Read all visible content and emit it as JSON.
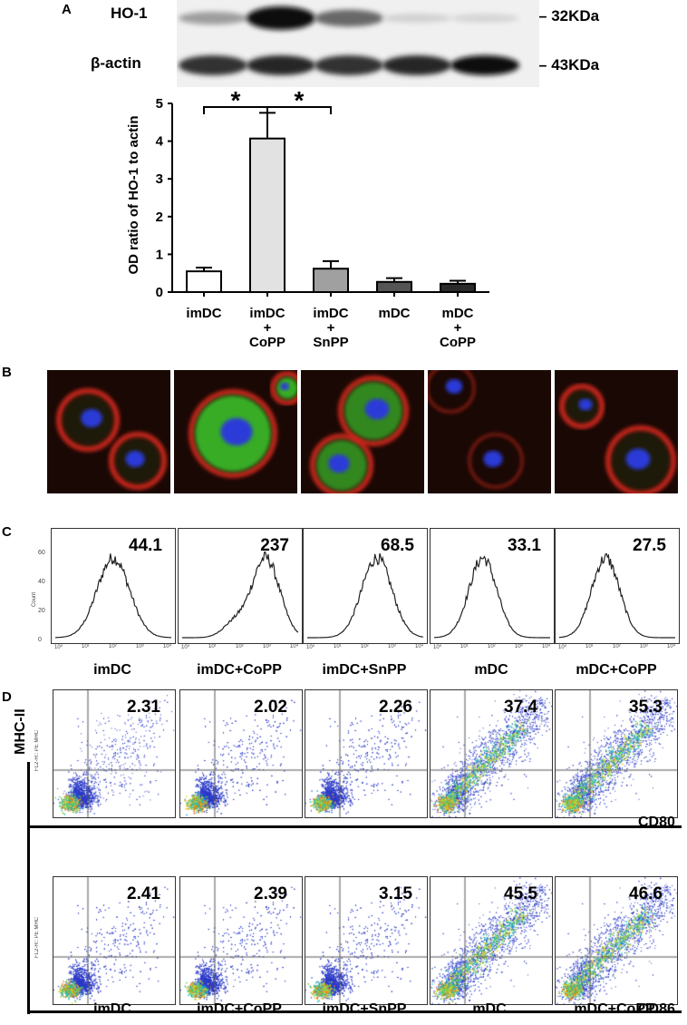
{
  "panels": {
    "a": "A",
    "b": "B",
    "c": "C",
    "d": "D"
  },
  "western_blot": {
    "rows": [
      {
        "protein": "HO-1",
        "size": "32KDa",
        "intensities": [
          0.35,
          1.0,
          0.6,
          0.12,
          0.1
        ]
      },
      {
        "protein": "β-actin",
        "size": "43KDa",
        "intensities": [
          0.85,
          0.9,
          0.85,
          0.9,
          1.0
        ]
      }
    ]
  },
  "chart_data": {
    "type": "bar",
    "categories": [
      "imDC\n+\n",
      "imDC\n+\nCoPP",
      "imDC\n+\nSnPP",
      "mDC",
      "mDC\nCoPP"
    ],
    "category_labels": [
      [
        "imDC"
      ],
      [
        "imDC",
        "+",
        "CoPP"
      ],
      [
        "imDC",
        "+",
        "SnPP"
      ],
      [
        "mDC"
      ],
      [
        "mDC",
        "+",
        "CoPP"
      ]
    ],
    "values": [
      0.55,
      4.07,
      0.62,
      0.27,
      0.22
    ],
    "errors": [
      0.1,
      0.68,
      0.2,
      0.1,
      0.08
    ],
    "bar_colors": [
      "#ffffff",
      "#e2e2e2",
      "#a0a0a0",
      "#555555",
      "#2a2a2a"
    ],
    "ylabel": "OD ratio of HO-1 to actin",
    "ylim": [
      0,
      5
    ],
    "yticks": [
      0,
      1,
      2,
      3,
      4,
      5
    ],
    "significance": [
      {
        "from": 0,
        "to": 1,
        "label": "*"
      },
      {
        "from": 1,
        "to": 2,
        "label": "*"
      }
    ]
  },
  "histograms": {
    "y_axis_label": "Count",
    "y_ticks": [
      "0",
      "20",
      "40",
      "60"
    ],
    "x_ticks": [
      "10⁰",
      "10¹",
      "10²",
      "10³",
      "10⁴"
    ],
    "values": [
      "44.1",
      "237",
      "68.5",
      "33.1",
      "27.5"
    ],
    "labels": [
      "imDC",
      "imDC+CoPP",
      "imDC+SnPP",
      "mDC",
      "mDC+CoPP"
    ]
  },
  "flow": {
    "y_marker": "MHC-II",
    "y_axis_label": "FL2-H:: PE MHC",
    "rows": [
      {
        "marker": "CD80",
        "values": [
          "2.31",
          "2.02",
          "2.26",
          "37.4",
          "35.3"
        ]
      },
      {
        "marker": "CD86",
        "values": [
          "2.41",
          "2.39",
          "3.15",
          "45.5",
          "46.6"
        ]
      }
    ],
    "labels": [
      "imDC",
      "imDC+CoPP",
      "imDC+SnPP",
      "mDC",
      "mDC+CoPP"
    ],
    "maturity": [
      0.1,
      0.1,
      0.12,
      0.85,
      0.85
    ]
  }
}
